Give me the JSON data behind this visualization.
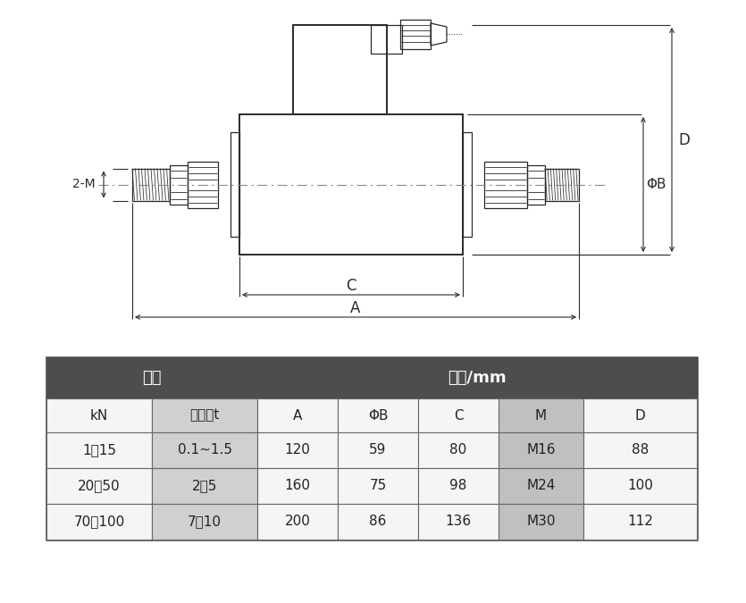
{
  "bg_color": "#ffffff",
  "line_color": "#2a2a2a",
  "dim_line_color": "#2a2a2a",
  "table_header_bg": "#4d4d4d",
  "table_header_fg": "#ffffff",
  "table_col2_bg": "#d0d0d0",
  "table_col_m_bg": "#c0c0c0",
  "table_border": "#444444",
  "table_data": {
    "header1": [
      "量程",
      "尺寸/mm"
    ],
    "subheader": [
      "kN",
      "相当于t",
      "A",
      "ΦB",
      "C",
      "M",
      "D"
    ],
    "rows": [
      [
        "1～15",
        "0.1~1.5",
        "120",
        "59",
        "80",
        "M16",
        "88"
      ],
      [
        "20～50",
        "2～5",
        "160",
        "75",
        "98",
        "M24",
        "100"
      ],
      [
        "70～100",
        "7～10",
        "200",
        "86",
        "136",
        "M30",
        "112"
      ]
    ]
  },
  "dim_labels": {
    "A": "A",
    "C": "C",
    "D": "D",
    "phiB": "ΦB",
    "M_label": "2-M"
  }
}
